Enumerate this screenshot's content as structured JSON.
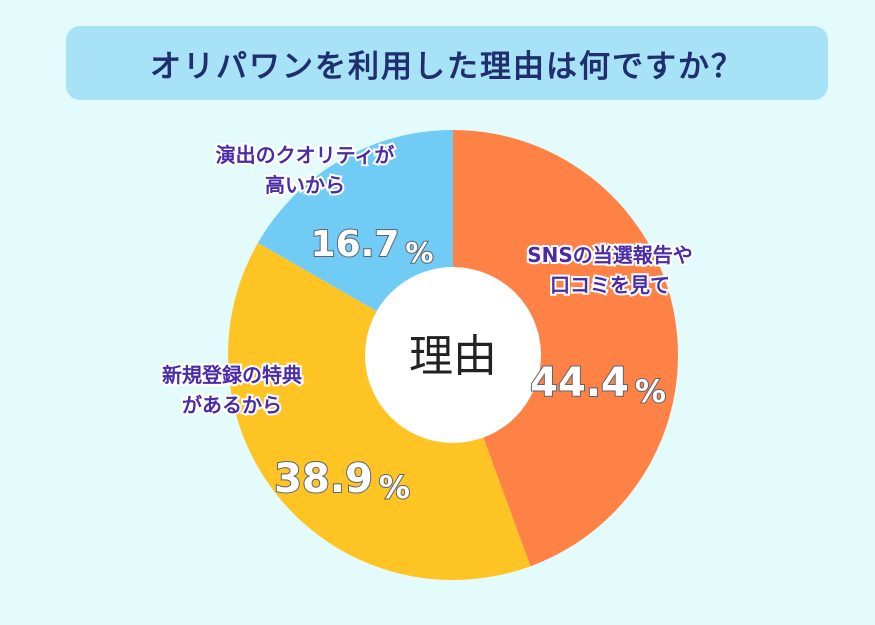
{
  "title": "オリパワンを利用した理由は何ですか？",
  "chart_data": {
    "type": "pie",
    "center_label": "理由",
    "slices": [
      {
        "label_lines": [
          "SNSの当選報告や",
          "口コミを見て"
        ],
        "value": 44.4,
        "value_text": "44.4",
        "unit": "%",
        "color": "#fe8146"
      },
      {
        "label_lines": [
          "新規登録の特典",
          "があるから"
        ],
        "value": 38.9,
        "value_text": "38.9",
        "unit": "%",
        "color": "#fec423"
      },
      {
        "label_lines": [
          "演出のクオリティが",
          "高いから"
        ],
        "value": 16.7,
        "value_text": "16.7",
        "unit": "%",
        "color": "#71ccf5"
      }
    ]
  }
}
